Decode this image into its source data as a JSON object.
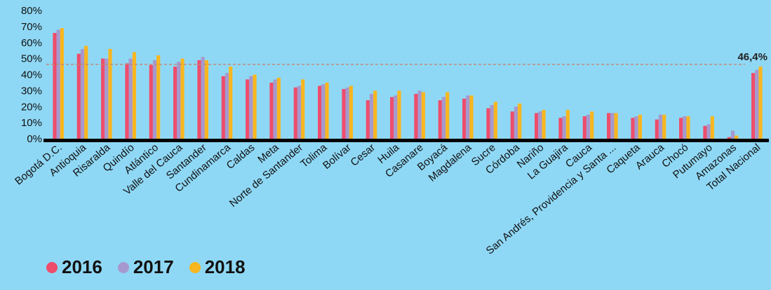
{
  "chart_data": {
    "type": "bar",
    "title": "",
    "xlabel": "",
    "ylabel": "",
    "ylim": [
      0,
      80
    ],
    "yticks": [
      "0%",
      "10%",
      "20%",
      "30%",
      "40%",
      "50%",
      "60%",
      "70%",
      "80%"
    ],
    "grid": false,
    "legend_position": "bottom-left",
    "categories": [
      "Bogotá D.C.",
      "Antioquia",
      "Risaralda",
      "Quindío",
      "Atlántico",
      "Valle del Cauca",
      "Santander",
      "Cundinamarca",
      "Caldas",
      "Meta",
      "Norte de Santander",
      "Tolima",
      "Bolívar",
      "Cesar",
      "Huila",
      "Casanare",
      "Boyacá",
      "Magdalena",
      "Sucre",
      "Córdoba",
      "Nariño",
      "La Guajira",
      "Cauca",
      "San Andrés, Providencia y Santa ...",
      "Caqueta",
      "Arauca",
      "Chocó",
      "Putumayo",
      "Amazonas",
      "Total Nacional"
    ],
    "series": [
      {
        "name": "2016",
        "color": "#ee4d6c",
        "values": [
          66,
          53,
          50,
          47,
          46,
          45,
          49,
          39,
          37,
          35,
          32,
          33,
          31,
          24,
          26,
          28,
          24,
          25,
          19,
          17,
          16,
          13,
          14,
          16,
          13,
          12,
          13,
          8,
          1,
          41
        ]
      },
      {
        "name": "2017",
        "color": "#a599cf",
        "values": [
          68,
          56,
          50,
          50,
          49,
          48,
          51,
          41,
          39,
          37,
          33,
          34,
          32,
          28,
          27,
          30,
          26,
          27,
          21,
          20,
          17,
          14,
          15,
          16,
          14,
          15,
          14,
          9,
          5,
          43
        ]
      },
      {
        "name": "2018",
        "color": "#f8b620",
        "values": [
          69,
          58,
          56,
          54,
          52,
          50,
          49,
          45,
          40,
          38,
          37,
          35,
          33,
          30,
          30,
          29,
          29,
          27,
          23,
          22,
          18,
          18,
          17,
          16,
          15,
          15,
          14,
          14,
          2,
          45
        ]
      }
    ],
    "reference_line": {
      "value": 46.4,
      "label": "46,4%",
      "color": "#c08a78"
    }
  }
}
